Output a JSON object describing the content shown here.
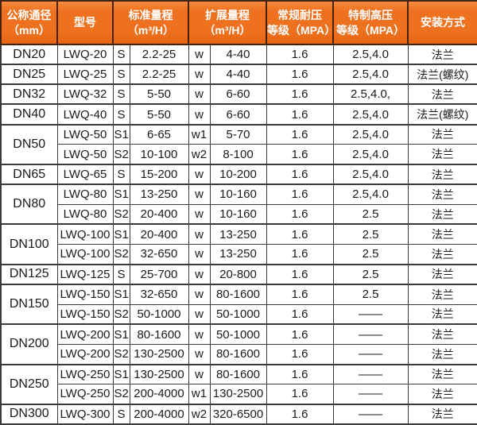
{
  "colors": {
    "header_orange": "#ee711f",
    "header_orange_light": "#f68b3e",
    "header_orange_dark": "#e66410",
    "header_border": "#43230b",
    "border_dark": "#3a3a3a",
    "text_color": "#1a1a1a",
    "header_text": "#ffffff"
  },
  "table": {
    "headers": {
      "nominal_diameter": "公称通径\n（mm）",
      "model": "型号",
      "standard_range": "标准量程\n（m³/H）",
      "extended_range": "扩展量程\n（m³/H）",
      "normal_pressure": "常规耐压\n等级（MPA）",
      "special_high_pressure": "特制高压\n等级（MPA）",
      "installation": "安装方式"
    },
    "groups": [
      {
        "diameter": "DN20",
        "rows": [
          [
            "LWQ-20",
            "S",
            "2.2-25",
            "w",
            "4-40",
            "1.6",
            "2.5,4.0",
            "法兰"
          ]
        ]
      },
      {
        "diameter": "DN25",
        "rows": [
          [
            "LWQ-25",
            "S",
            "2.2-25",
            "w",
            "4-40",
            "1.6",
            "2.5,4.0",
            "法兰(螺纹)"
          ]
        ]
      },
      {
        "diameter": "DN32",
        "rows": [
          [
            "LWQ-32",
            "S",
            "5-50",
            "w",
            "6-60",
            "1.6",
            "2.5,4.0,",
            "法兰"
          ]
        ]
      },
      {
        "diameter": "DN40",
        "rows": [
          [
            "LWQ-40",
            "S",
            "5-50",
            "w",
            "6-60",
            "1.6",
            "2.5,4.0",
            "法兰(螺纹)"
          ]
        ]
      },
      {
        "diameter": "DN50",
        "rows": [
          [
            "LWQ-50",
            "S1",
            "6-65",
            "w1",
            "5-70",
            "1.6",
            "2.5,4.0",
            "法兰"
          ],
          [
            "LWQ-50",
            "S2",
            "10-100",
            "w2",
            "8-100",
            "1.6",
            "2.5,4.0",
            "法兰"
          ]
        ]
      },
      {
        "diameter": "DN65",
        "rows": [
          [
            "LWQ-65",
            "S",
            "15-200",
            "w",
            "10-200",
            "1.6",
            "2.5,4.0",
            "法兰"
          ]
        ]
      },
      {
        "diameter": "DN80",
        "rows": [
          [
            "LWQ-80",
            "S1",
            "13-250",
            "w",
            "10-160",
            "1.6",
            "2.5,4.0",
            "法兰"
          ],
          [
            "LWQ-80",
            "S2",
            "20-400",
            "w",
            "10-160",
            "1.6",
            "2.5",
            "法兰"
          ]
        ]
      },
      {
        "diameter": "DN100",
        "rows": [
          [
            "LWQ-100",
            "S1",
            "20-400",
            "w",
            "13-250",
            "1.6",
            "2.5",
            "法兰"
          ],
          [
            "LWQ-100",
            "S2",
            "32-650",
            "w",
            "13-250",
            "1.6",
            "2.5",
            "法兰"
          ]
        ]
      },
      {
        "diameter": "DN125",
        "rows": [
          [
            "LWQ-125",
            "S",
            "25-700",
            "w",
            "20-800",
            "1.6",
            "2.5",
            "法兰"
          ]
        ]
      },
      {
        "diameter": "DN150",
        "rows": [
          [
            "LWQ-150",
            "S1",
            "32-650",
            "w",
            "80-1600",
            "1.6",
            "2.5",
            "法兰"
          ],
          [
            "LWQ-150",
            "S2",
            "50-1000",
            "w",
            "50-1000",
            "1.6",
            "——",
            "法兰"
          ]
        ]
      },
      {
        "diameter": "DN200",
        "rows": [
          [
            "LWQ-200",
            "S1",
            "80-1600",
            "w",
            "50-1000",
            "1.6",
            "——",
            "法兰"
          ],
          [
            "LWQ-200",
            "S2",
            "130-2500",
            "w",
            "80-1600",
            "1.6",
            "——",
            "法兰"
          ]
        ]
      },
      {
        "diameter": "DN250",
        "rows": [
          [
            "LWQ-250",
            "S1",
            "130-2500",
            "w",
            "80-1600",
            "1.6",
            "——",
            "法兰"
          ],
          [
            "LWQ-250",
            "S2",
            "200-4000",
            "w1",
            "130-2500",
            "1.6",
            "——",
            "法兰"
          ]
        ]
      },
      {
        "diameter": "DN300",
        "rows": [
          [
            "LWQ-300",
            "S",
            "200-4000",
            "w2",
            "320-6500",
            "1.6",
            "——",
            "法兰"
          ]
        ]
      }
    ]
  }
}
